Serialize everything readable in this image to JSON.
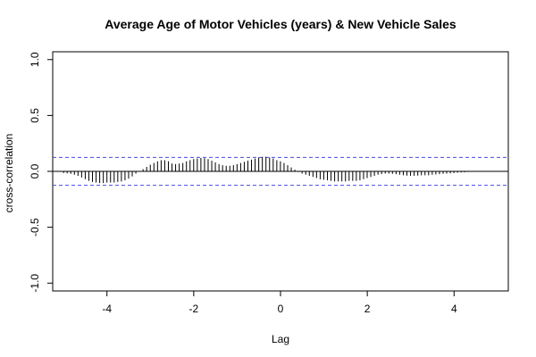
{
  "chart_data": {
    "type": "bar",
    "title": "Average Age of Motor Vehicles (years) & New Vehicle Sales",
    "xlabel": "Lag",
    "ylabel": "cross-correlation",
    "xlim": [
      -5.25,
      5.25
    ],
    "ylim": [
      -1.07,
      1.07
    ],
    "x_ticks": [
      -4,
      -2,
      0,
      2,
      4
    ],
    "x_tick_labels": [
      "-4",
      "-2",
      "0",
      "2",
      "4"
    ],
    "y_ticks": [
      -1.0,
      -0.5,
      0.0,
      0.5,
      1.0
    ],
    "y_tick_labels": [
      "-1.0",
      "-0.5",
      "0.0",
      "0.5",
      "1.0"
    ],
    "confidence_band": [
      -0.125,
      0.125
    ],
    "colors": {
      "bars": "#000000",
      "band": "#4a4ae0",
      "zero_line": "#000000"
    },
    "lag_start": -5,
    "lag_step": 0.0833,
    "values": [
      -0.015,
      -0.018,
      -0.022,
      -0.03,
      -0.04,
      -0.055,
      -0.07,
      -0.085,
      -0.095,
      -0.1,
      -0.105,
      -0.105,
      -0.1,
      -0.1,
      -0.1,
      -0.095,
      -0.09,
      -0.08,
      -0.065,
      -0.045,
      -0.02,
      0.0,
      0.02,
      0.04,
      0.06,
      0.075,
      0.09,
      0.1,
      0.1,
      0.09,
      0.07,
      0.065,
      0.07,
      0.075,
      0.09,
      0.1,
      0.11,
      0.115,
      0.12,
      0.118,
      0.11,
      0.095,
      0.08,
      0.065,
      0.055,
      0.05,
      0.05,
      0.055,
      0.065,
      0.075,
      0.085,
      0.095,
      0.105,
      0.115,
      0.125,
      0.13,
      0.13,
      0.125,
      0.115,
      0.1,
      0.09,
      0.075,
      0.055,
      0.035,
      0.015,
      -0.005,
      -0.02,
      -0.03,
      -0.04,
      -0.05,
      -0.06,
      -0.07,
      -0.075,
      -0.08,
      -0.085,
      -0.09,
      -0.09,
      -0.09,
      -0.09,
      -0.085,
      -0.085,
      -0.085,
      -0.08,
      -0.07,
      -0.06,
      -0.05,
      -0.04,
      -0.03,
      -0.025,
      -0.02,
      -0.02,
      -0.022,
      -0.025,
      -0.03,
      -0.035,
      -0.038,
      -0.04,
      -0.04,
      -0.038,
      -0.035,
      -0.035,
      -0.035,
      -0.03,
      -0.028,
      -0.025,
      -0.022,
      -0.02,
      -0.018,
      -0.015,
      -0.012,
      -0.01,
      -0.008,
      -0.005,
      -0.004,
      -0.003,
      -0.002,
      -0.002,
      -0.002,
      -0.002,
      -0.002,
      -0.002
    ]
  }
}
